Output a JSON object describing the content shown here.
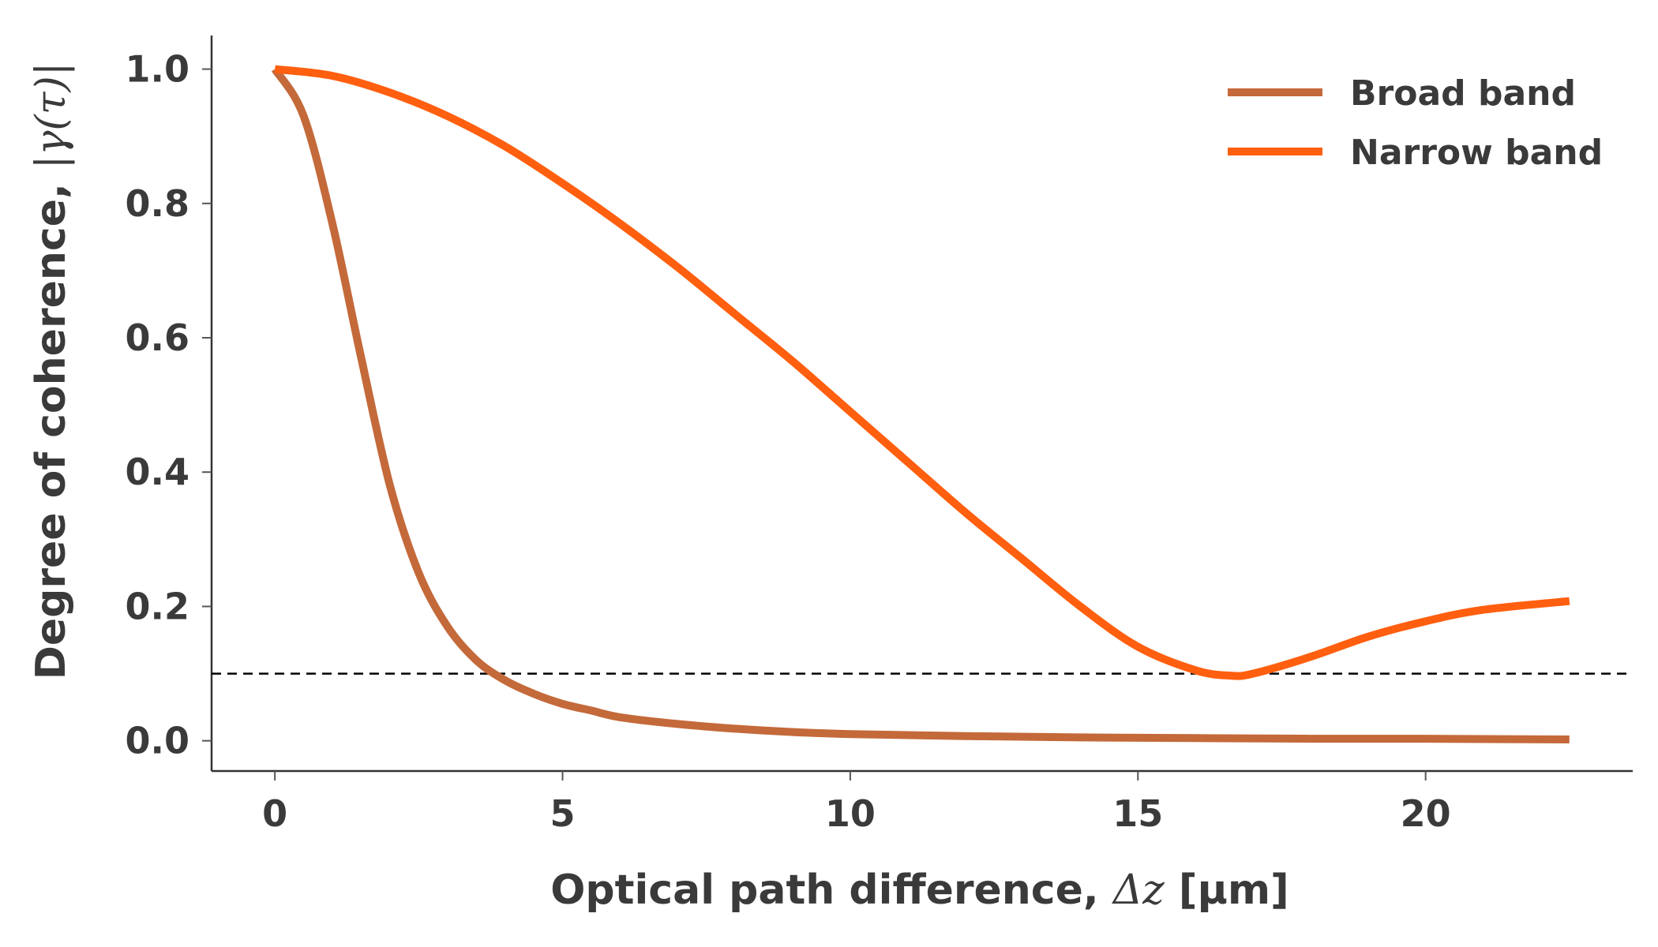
{
  "chart_data": {
    "type": "line",
    "xlabel_prefix": "Optical path difference, ",
    "xlabel_math": "Δz",
    "xlabel_suffix": " [μm]",
    "ylabel_prefix": "Degree of coherence, ",
    "ylabel_math": "|γ(τ)|",
    "xlim": [
      -1.1,
      23.6
    ],
    "ylim": [
      -0.045,
      1.05
    ],
    "xticks": [
      0,
      5,
      10,
      15,
      20
    ],
    "xtick_labels": [
      "0",
      "5",
      "10",
      "15",
      "20"
    ],
    "yticks": [
      0.0,
      0.2,
      0.4,
      0.6,
      0.8,
      1.0
    ],
    "ytick_labels": [
      "0.0",
      "0.2",
      "0.4",
      "0.6",
      "0.8",
      "1.0"
    ],
    "grid": false,
    "legend_position": "top-right",
    "reference_line": {
      "y": 0.1,
      "style": "dashed",
      "color": "#000000"
    },
    "series": [
      {
        "name": "Broad band",
        "color": "#c4693a",
        "x": [
          0,
          0.5,
          1.0,
          1.5,
          2.0,
          2.5,
          3.0,
          3.5,
          4.0,
          4.5,
          5.0,
          5.5,
          6.0,
          7.0,
          8.0,
          9.0,
          10.0,
          12.0,
          14.0,
          16.0,
          18.0,
          20.0,
          22.5
        ],
        "y": [
          1.0,
          0.93,
          0.77,
          0.57,
          0.38,
          0.25,
          0.17,
          0.12,
          0.09,
          0.07,
          0.055,
          0.045,
          0.035,
          0.025,
          0.018,
          0.013,
          0.01,
          0.007,
          0.005,
          0.004,
          0.003,
          0.003,
          0.002
        ]
      },
      {
        "name": "Narrow band",
        "color": "#ff5f0f",
        "x": [
          0,
          1,
          2,
          3,
          4,
          5,
          6,
          7,
          8,
          9,
          10,
          11,
          12,
          13,
          14,
          15,
          16,
          16.6,
          17,
          18,
          19,
          20,
          21,
          22.5
        ],
        "y": [
          1.0,
          0.99,
          0.965,
          0.93,
          0.885,
          0.83,
          0.77,
          0.705,
          0.635,
          0.565,
          0.49,
          0.415,
          0.34,
          0.27,
          0.2,
          0.14,
          0.105,
          0.097,
          0.1,
          0.125,
          0.155,
          0.178,
          0.195,
          0.208
        ]
      }
    ]
  }
}
